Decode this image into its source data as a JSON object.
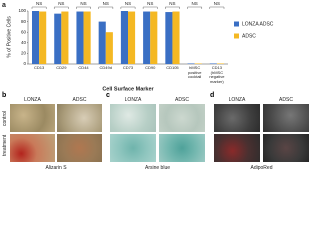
{
  "chart_data": {
    "type": "bar",
    "panel_label": "a",
    "ylabel": "% of Positive Cells",
    "xlabel": "Cell Surface Marker",
    "categories": [
      "CD13",
      "CD29",
      "CD44",
      "CD49d",
      "CD73",
      "CD90",
      "CD105",
      "hMSC positive cocktail",
      "CD13 (hMSC negative marker)"
    ],
    "series": [
      {
        "name": "LONZA ADSC",
        "color": "#3a6fc4",
        "values": [
          100,
          95,
          99,
          80,
          100,
          99,
          98,
          1,
          1
        ]
      },
      {
        "name": "ADSC",
        "color": "#f4b823",
        "values": [
          99,
          99,
          99,
          60,
          99,
          99,
          99,
          1,
          1
        ]
      }
    ],
    "significance": [
      "NS",
      "NS",
      "NS",
      "NS",
      "NS",
      "NS",
      "NS",
      "NS",
      "NS"
    ],
    "ylim": [
      0,
      100
    ],
    "yticks": [
      0,
      20,
      40,
      60,
      80,
      100
    ],
    "grid": false,
    "legend": "right"
  },
  "panels": [
    {
      "letter": "b",
      "columns": [
        "LONZA",
        "ADSC"
      ],
      "rows": [
        "control",
        "treatment"
      ],
      "caption": "Alizarin S"
    },
    {
      "letter": "c",
      "columns": [
        "LONZA",
        "ADSC"
      ],
      "caption": "Arsine blue"
    },
    {
      "letter": "d",
      "columns": [
        "LONZA",
        "ADSC"
      ],
      "caption": "AdipoRed"
    }
  ]
}
